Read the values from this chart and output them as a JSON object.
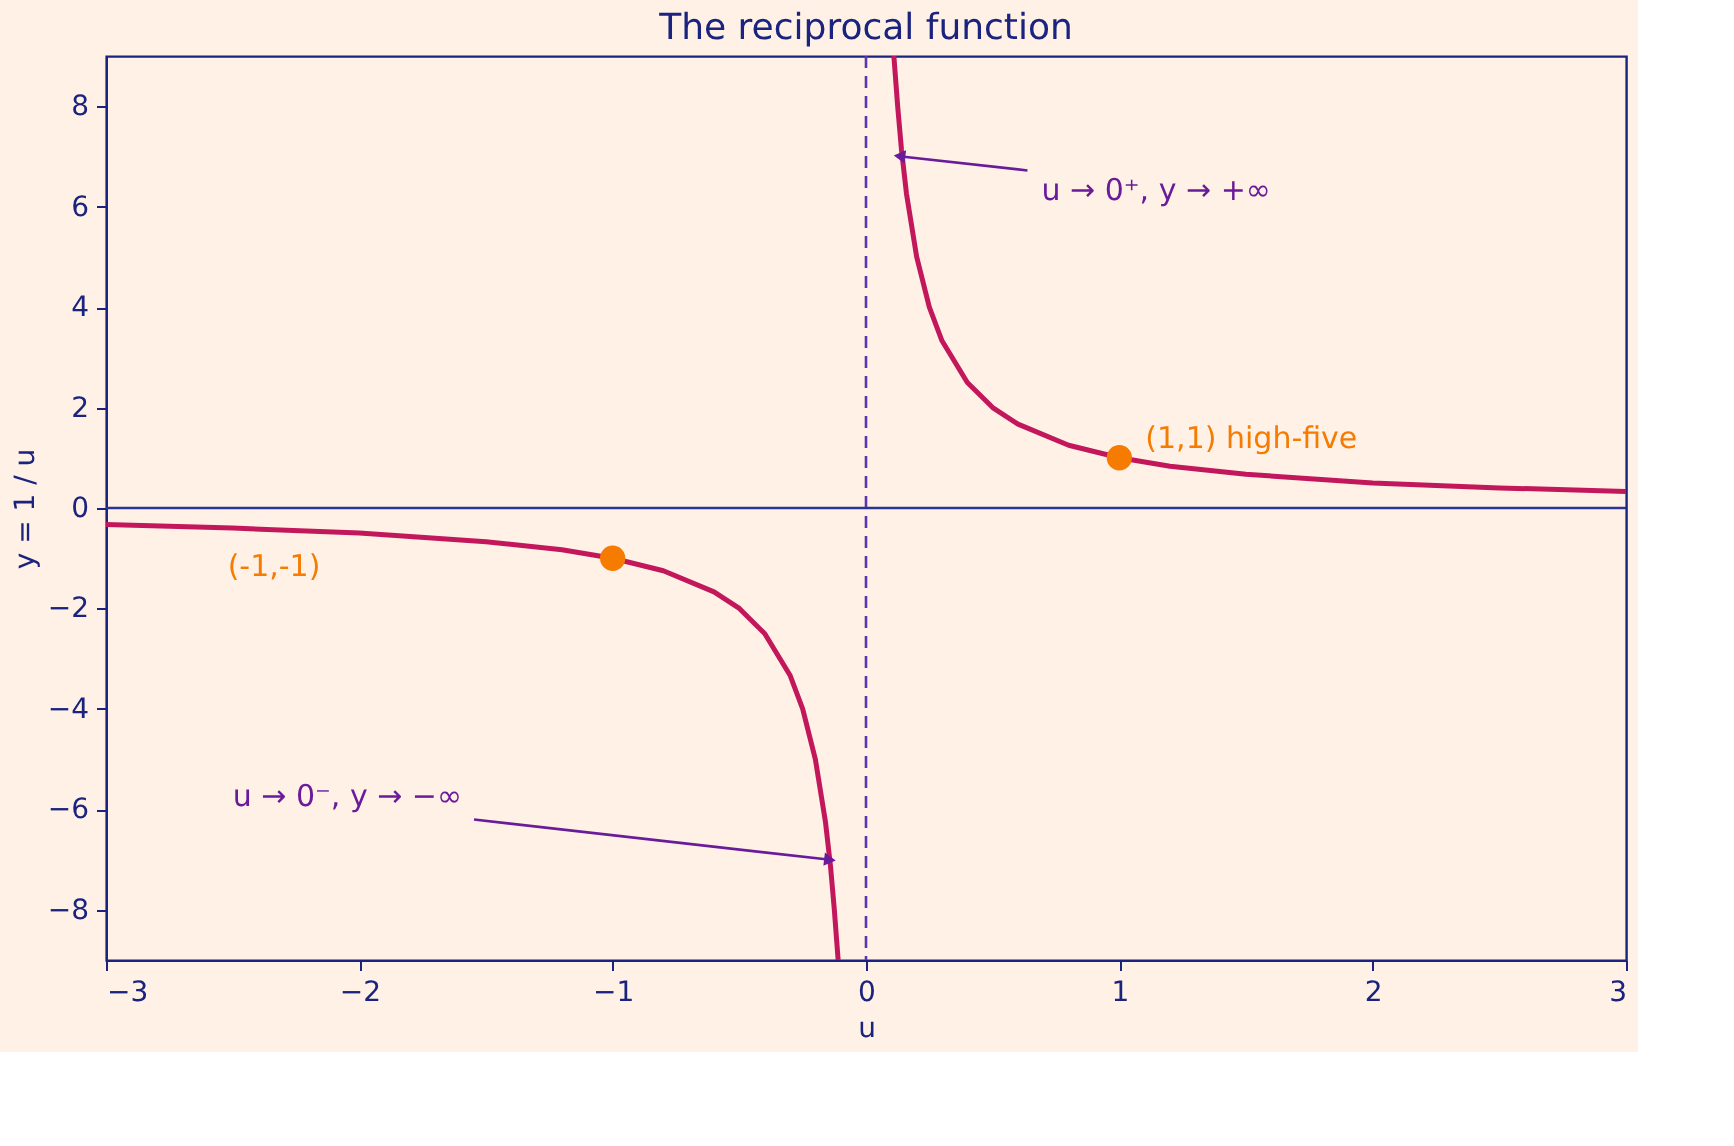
{
  "chart_data": {
    "type": "line",
    "title": "The reciprocal function",
    "xlabel": "u",
    "ylabel": "y = 1 / u",
    "series": [
      {
        "color": "#c2185b",
        "marker": "none",
        "x": [
          -3,
          -2.5,
          -2,
          -1.5,
          -1.2,
          -1,
          -0.8,
          -0.6,
          -0.5,
          -0.4,
          -0.3,
          -0.25,
          -0.2,
          -0.16,
          -0.14,
          -0.125,
          -0.11
        ],
        "values": [
          -0.33,
          -0.4,
          -0.5,
          -0.67,
          -0.83,
          -1,
          -1.25,
          -1.67,
          -2,
          -2.5,
          -3.33,
          -4,
          -5,
          -6.25,
          -7.14,
          -8,
          -9
        ]
      },
      {
        "color": "#c2185b",
        "marker": "none",
        "x": [
          0.11,
          0.125,
          0.14,
          0.16,
          0.2,
          0.25,
          0.3,
          0.4,
          0.5,
          0.6,
          0.8,
          1,
          1.2,
          1.5,
          2,
          2.5,
          3
        ],
        "values": [
          9,
          8,
          7.14,
          6.25,
          5,
          4,
          3.33,
          2.5,
          2,
          1.67,
          1.25,
          1,
          0.83,
          0.67,
          0.5,
          0.4,
          0.33
        ]
      },
      {
        "type": "scatter",
        "marker": "circle",
        "color": "#f57c00",
        "x": [
          -1,
          1
        ],
        "values": [
          -1,
          1
        ]
      }
    ],
    "annotations": [
      {
        "text": "(1,1) high-five",
        "x": 1,
        "y": 1
      },
      "(-1,-1)",
      {
        "text": "u → 0⁺, y → +∞",
        "x": 0.14,
        "y": 7
      },
      {
        "text": "u → 0⁻, y → −∞",
        "x": -0.15,
        "y": -7
      }
    ],
    "ref_lines": [
      {
        "axis": "x",
        "value": 0,
        "color": "#5e35b1",
        "line_style": "dashed"
      },
      {
        "axis": "y",
        "value": 0,
        "color": "#283593",
        "line_style": "solid"
      }
    ],
    "xlim": [
      -3,
      3
    ],
    "ylim": [
      -9,
      9
    ],
    "xticks": [
      {
        "value": -3,
        "label": "−3"
      },
      {
        "value": -2,
        "label": "−2"
      },
      {
        "value": -1,
        "label": "−1"
      },
      0,
      1,
      2,
      3
    ],
    "yticks": [
      {
        "value": -8,
        "label": "−8"
      },
      {
        "value": -6,
        "label": "−6"
      },
      {
        "value": -4,
        "label": "−4"
      },
      {
        "value": -2,
        "label": "−2"
      },
      0,
      2,
      4,
      6,
      8
    ],
    "grid": false,
    "legend": false,
    "line_style": "solid"
  }
}
